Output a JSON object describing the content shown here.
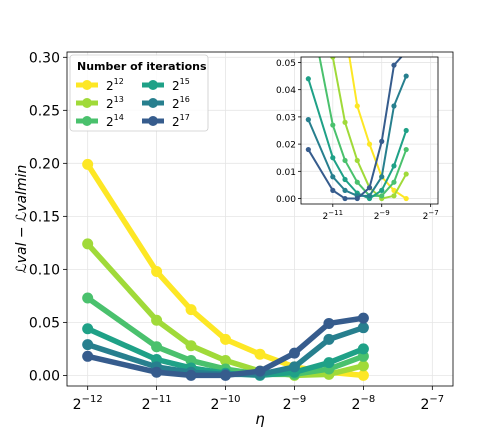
{
  "chart_data": [
    {
      "type": "line",
      "title": "",
      "xlabel": "η",
      "ylabel": "ℒval − ℒvalmin",
      "x_scale": "log2",
      "x": [
        0.000244140625,
        0.00048828125,
        0.0006905339660024879,
        0.0009765625,
        0.0013810679320049757,
        0.001953125,
        0.0027621358640099515,
        0.00390625
      ],
      "xlim_exp": [
        -12.3,
        -6.7
      ],
      "ylim": [
        -0.01,
        0.305
      ],
      "x_ticks": [
        {
          "base": "2",
          "exp": "−12",
          "value_exp": -12
        },
        {
          "base": "2",
          "exp": "−11",
          "value_exp": -11
        },
        {
          "base": "2",
          "exp": "−10",
          "value_exp": -10
        },
        {
          "base": "2",
          "exp": "−9",
          "value_exp": -9
        },
        {
          "base": "2",
          "exp": "−8",
          "value_exp": -8
        },
        {
          "base": "2",
          "exp": "−7",
          "value_exp": -7
        }
      ],
      "y_ticks": [
        "0.00",
        "0.05",
        "0.10",
        "0.15",
        "0.20",
        "0.25",
        "0.30"
      ],
      "y_tick_values": [
        0,
        0.05,
        0.1,
        0.15,
        0.2,
        0.25,
        0.3
      ],
      "grid": true,
      "legend": {
        "title": "Number of iterations",
        "placement": "top-left"
      },
      "series": [
        {
          "name": "2^12",
          "base": "2",
          "exp": "12",
          "color": "#fde725",
          "values": [
            0.199,
            0.098,
            0.062,
            0.034,
            0.02,
            0.008,
            0.003,
            0.0
          ]
        },
        {
          "name": "2^13",
          "base": "2",
          "exp": "13",
          "color": "#a0da39",
          "values": [
            0.124,
            0.052,
            0.028,
            0.014,
            0.004,
            0.0,
            0.001,
            0.009
          ]
        },
        {
          "name": "2^14",
          "base": "2",
          "exp": "14",
          "color": "#4ac16d",
          "values": [
            0.073,
            0.027,
            0.014,
            0.006,
            0.001,
            0.001,
            0.006,
            0.018
          ]
        },
        {
          "name": "2^15",
          "base": "2",
          "exp": "15",
          "color": "#1fa187",
          "values": [
            0.044,
            0.015,
            0.007,
            0.002,
            0.0,
            0.003,
            0.012,
            0.025
          ]
        },
        {
          "name": "2^16",
          "base": "2",
          "exp": "16",
          "color": "#277f8e",
          "values": [
            0.029,
            0.008,
            0.003,
            0.001,
            0.001,
            0.008,
            0.034,
            0.045
          ]
        },
        {
          "name": "2^17",
          "base": "2",
          "exp": "17",
          "color": "#365c8d",
          "values": [
            0.018,
            0.003,
            0.0,
            0.0,
            0.004,
            0.021,
            0.049,
            0.054
          ]
        }
      ]
    },
    {
      "type": "line",
      "title": "",
      "xlabel": "",
      "ylabel": "",
      "x_scale": "log2",
      "xlim_exp": [
        -12.3,
        -6.7
      ],
      "ylim": [
        -0.002,
        0.052
      ],
      "x_ticks": [
        {
          "base": "2",
          "exp": "−11",
          "value_exp": -11
        },
        {
          "base": "2",
          "exp": "−9",
          "value_exp": -9
        },
        {
          "base": "2",
          "exp": "−7",
          "value_exp": -7
        }
      ],
      "y_ticks": [
        "0.00",
        "0.01",
        "0.02",
        "0.03",
        "0.04",
        "0.05"
      ],
      "y_tick_values": [
        0,
        0.01,
        0.02,
        0.03,
        0.04,
        0.05
      ],
      "grid": true,
      "note": "inset zoom of the main chart's lower range"
    }
  ]
}
